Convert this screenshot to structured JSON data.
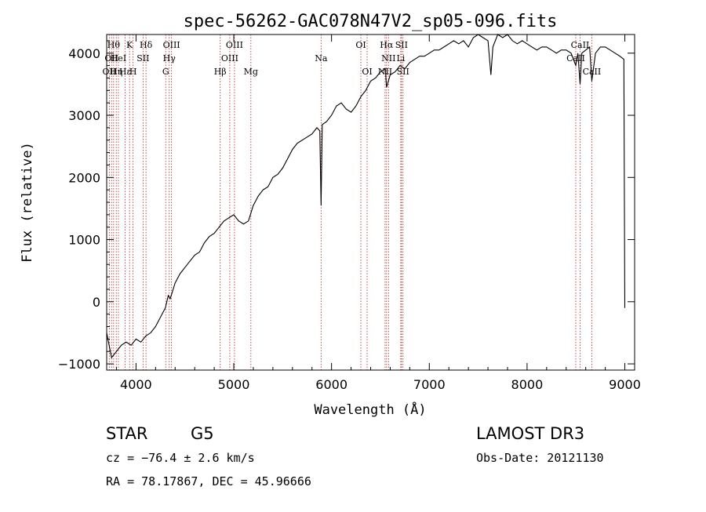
{
  "chart_data": {
    "type": "line",
    "title": "spec-56262-GAC078N47V2_sp05-096.fits",
    "xlabel": "Wavelength (Å)",
    "ylabel": "Flux (relative)",
    "xlim": [
      3700,
      9100
    ],
    "ylim": [
      -1100,
      4300
    ],
    "xticks": [
      4000,
      5000,
      6000,
      7000,
      8000,
      9000
    ],
    "yticks": [
      -1000,
      0,
      1000,
      2000,
      3000,
      4000
    ],
    "series": [
      {
        "name": "spectrum",
        "x": [
          3700,
          3750,
          3800,
          3850,
          3900,
          3950,
          4000,
          4050,
          4100,
          4150,
          4200,
          4250,
          4300,
          4330,
          4350,
          4400,
          4450,
          4500,
          4550,
          4600,
          4650,
          4700,
          4750,
          4800,
          4850,
          4900,
          4950,
          5000,
          5050,
          5100,
          5150,
          5200,
          5250,
          5300,
          5350,
          5400,
          5450,
          5500,
          5550,
          5600,
          5650,
          5700,
          5750,
          5800,
          5850,
          5880,
          5893,
          5905,
          5950,
          6000,
          6050,
          6100,
          6150,
          6200,
          6250,
          6300,
          6350,
          6400,
          6450,
          6500,
          6550,
          6563,
          6600,
          6650,
          6700,
          6750,
          6800,
          6850,
          6900,
          6950,
          7000,
          7050,
          7100,
          7150,
          7200,
          7250,
          7300,
          7350,
          7400,
          7450,
          7500,
          7550,
          7600,
          7630,
          7650,
          7700,
          7750,
          7800,
          7850,
          7900,
          7950,
          8000,
          8050,
          8100,
          8150,
          8200,
          8250,
          8300,
          8350,
          8400,
          8450,
          8498,
          8520,
          8542,
          8560,
          8600,
          8640,
          8662,
          8700,
          8750,
          8800,
          8850,
          8900,
          8950,
          8990,
          9000
        ],
        "values": [
          -500,
          -900,
          -800,
          -700,
          -650,
          -700,
          -600,
          -650,
          -550,
          -500,
          -400,
          -250,
          -100,
          100,
          50,
          300,
          450,
          550,
          650,
          750,
          800,
          950,
          1050,
          1100,
          1200,
          1300,
          1350,
          1400,
          1300,
          1250,
          1300,
          1550,
          1700,
          1800,
          1850,
          2000,
          2050,
          2150,
          2300,
          2450,
          2550,
          2600,
          2650,
          2700,
          2800,
          2750,
          1550,
          2850,
          2900,
          3000,
          3150,
          3200,
          3100,
          3050,
          3150,
          3300,
          3400,
          3550,
          3600,
          3700,
          3750,
          3450,
          3650,
          3700,
          3800,
          3750,
          3850,
          3900,
          3950,
          3950,
          4000,
          4050,
          4050,
          4100,
          4150,
          4200,
          4150,
          4200,
          4100,
          4250,
          4300,
          4250,
          4200,
          3650,
          4100,
          4300,
          4250,
          4300,
          4200,
          4150,
          4200,
          4150,
          4100,
          4050,
          4100,
          4100,
          4050,
          4000,
          4050,
          4050,
          4000,
          3800,
          4000,
          3500,
          4000,
          4050,
          4100,
          3550,
          4000,
          4100,
          4100,
          4050,
          4000,
          3950,
          3900,
          -100
        ]
      }
    ],
    "line_markers": [
      {
        "wavelength": 3727,
        "label": "OII",
        "row": 2
      },
      {
        "wavelength": 3750,
        "label": "OII",
        "row": 1
      },
      {
        "wavelength": 3771,
        "label": "Hθ",
        "row": 0
      },
      {
        "wavelength": 3798,
        "label": "Hη",
        "row": 2
      },
      {
        "wavelength": 3820,
        "label": "HeI",
        "row": 1
      },
      {
        "wavelength": 3889,
        "label": "Hε",
        "row": 2
      },
      {
        "wavelength": 3934,
        "label": "K",
        "row": 0
      },
      {
        "wavelength": 3970,
        "label": "H",
        "row": 2
      },
      {
        "wavelength": 4072,
        "label": "SII",
        "row": 1
      },
      {
        "wavelength": 4102,
        "label": "Hδ",
        "row": 0
      },
      {
        "wavelength": 4304,
        "label": "G",
        "row": 2
      },
      {
        "wavelength": 4340,
        "label": "Hγ",
        "row": 1
      },
      {
        "wavelength": 4363,
        "label": "OIII",
        "row": 0
      },
      {
        "wavelength": 4861,
        "label": "Hβ",
        "row": 2
      },
      {
        "wavelength": 4959,
        "label": "OIII",
        "row": 1
      },
      {
        "wavelength": 5007,
        "label": "OIII",
        "row": 0
      },
      {
        "wavelength": 5175,
        "label": "Mg",
        "row": 2
      },
      {
        "wavelength": 5893,
        "label": "Na",
        "row": 1
      },
      {
        "wavelength": 6300,
        "label": "OI",
        "row": 0
      },
      {
        "wavelength": 6364,
        "label": "OI",
        "row": 2
      },
      {
        "wavelength": 6548,
        "label": "NII",
        "row": 2
      },
      {
        "wavelength": 6563,
        "label": "Hα",
        "row": 0
      },
      {
        "wavelength": 6583,
        "label": "NII",
        "row": 1
      },
      {
        "wavelength": 6708,
        "label": "Li",
        "row": 1
      },
      {
        "wavelength": 6716,
        "label": "SII",
        "row": 0
      },
      {
        "wavelength": 6731,
        "label": "SII",
        "row": 2
      },
      {
        "wavelength": 8498,
        "label": "CaII",
        "row": 1
      },
      {
        "wavelength": 8542,
        "label": "CaII",
        "row": 0
      },
      {
        "wavelength": 8662,
        "label": "CaII",
        "row": 2
      }
    ]
  },
  "footer": {
    "object_type": "STAR",
    "subclass": "G5",
    "survey": "LAMOST DR3",
    "redshift_text": "cz = −76.4 ± 2.6 km/s",
    "obs_date_text": "Obs-Date: 20121130",
    "coords_text": "RA =  78.17867, DEC =  45.96666"
  },
  "colors": {
    "spectrum": "#000000",
    "line_marker": "#b22222",
    "axes": "#000000"
  }
}
